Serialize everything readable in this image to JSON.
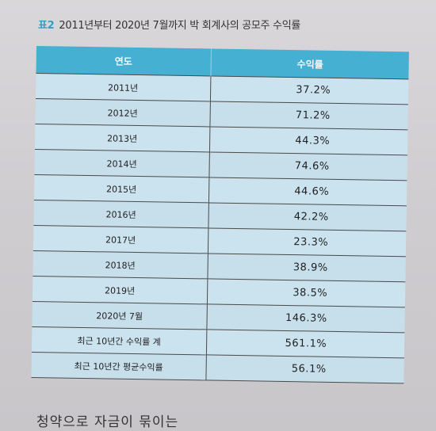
{
  "caption": {
    "label": "표2",
    "title": "2011년부터 2020년 7월까지 박 회계사의 공모주 수익률"
  },
  "table": {
    "headers": [
      "연도",
      "수익률"
    ],
    "rows": [
      {
        "year": "2011년",
        "value": "37.2%"
      },
      {
        "year": "2012년",
        "value": "71.2%"
      },
      {
        "year": "2013년",
        "value": "44.3%"
      },
      {
        "year": "2014년",
        "value": "74.6%"
      },
      {
        "year": "2015년",
        "value": "44.6%"
      },
      {
        "year": "2016년",
        "value": "42.2%"
      },
      {
        "year": "2017년",
        "value": "23.3%"
      },
      {
        "year": "2018년",
        "value": "38.9%"
      },
      {
        "year": "2019년",
        "value": "38.5%"
      },
      {
        "year": "2020년 7월",
        "value": "146.3%"
      },
      {
        "year": "최근 10년간 수익률 계",
        "value": "561.1%"
      },
      {
        "year": "최근 10년간 평균수익률",
        "value": "56.1%"
      }
    ]
  },
  "footer": {
    "text": "청약으로 자금이 묶이는"
  }
}
